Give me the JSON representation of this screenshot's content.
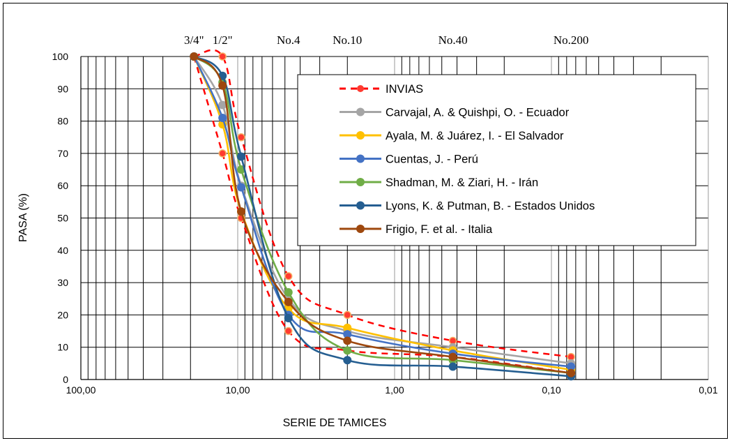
{
  "chart_data": {
    "type": "line",
    "xlabel": "SERIE DE TAMICES",
    "ylabel": "PASA (%)",
    "x_scale": "log",
    "x_reversed": true,
    "xlim": [
      100,
      0.01
    ],
    "ylim": [
      0,
      100
    ],
    "x_ticks": [
      {
        "value": 100,
        "label": "100,00"
      },
      {
        "value": 10,
        "label": "10,00"
      },
      {
        "value": 1,
        "label": "1,00"
      },
      {
        "value": 0.1,
        "label": "0,10"
      },
      {
        "value": 0.01,
        "label": "0,01"
      }
    ],
    "y_ticks": [
      0,
      10,
      20,
      30,
      40,
      50,
      60,
      70,
      80,
      90,
      100
    ],
    "grid": true,
    "sieves": [
      {
        "label": "3/4\"",
        "size": 19
      },
      {
        "label": "1/2\"",
        "size": 12.5
      },
      {
        "label": "No.4",
        "size": 4.75
      },
      {
        "label": "No.10",
        "size": 2.0
      },
      {
        "label": "No.40",
        "size": 0.425
      },
      {
        "label": "No.200",
        "size": 0.075
      }
    ],
    "legend_position": "right",
    "series": [
      {
        "name": "INVIAS",
        "color": "#FF0000",
        "dashed": true,
        "x": [
          19,
          12.5,
          9.5,
          4.75,
          2.0,
          0.425,
          0.075
        ],
        "y": [
          100,
          100,
          75,
          32,
          20,
          12,
          7
        ]
      },
      {
        "name": "INVIAS",
        "color": "#FF0000",
        "dashed": true,
        "legend": false,
        "x": [
          19,
          12.5,
          9.5,
          4.75,
          2.0,
          0.425,
          0.075
        ],
        "y": [
          100,
          70,
          50,
          15,
          9,
          7,
          2
        ]
      },
      {
        "name": "Carvajal, A. & Quishpi, O. - Ecuador",
        "color": "#A5A5A5",
        "x": [
          19,
          12.5,
          9.5,
          4.75,
          2.0,
          0.425,
          0.075
        ],
        "y": [
          100,
          85,
          60,
          25,
          15,
          10,
          5
        ]
      },
      {
        "name": "Ayala, M. & Juárez, I. - El Salvador",
        "color": "#FFC000",
        "x": [
          19,
          12.5,
          9.5,
          4.75,
          2.0,
          0.425,
          0.075
        ],
        "y": [
          100,
          79,
          52,
          22,
          16,
          9,
          3
        ]
      },
      {
        "name": "Cuentas, J. - Perú",
        "color": "#4472C4",
        "x": [
          19,
          12.5,
          9.5,
          4.75,
          2.0,
          0.425,
          0.075
        ],
        "y": [
          100,
          81,
          59.5,
          20,
          14,
          8,
          4
        ]
      },
      {
        "name": "Shadman, M. & Ziari, H. - Irán",
        "color": "#70AD47",
        "x": [
          19,
          12.5,
          9.5,
          4.75,
          2.0,
          0.425,
          0.075
        ],
        "y": [
          100,
          92,
          65,
          27,
          9,
          6,
          2
        ]
      },
      {
        "name": "Lyons, K. & Putman, B. - Estados Unidos",
        "color": "#255E91",
        "x": [
          19,
          12.5,
          9.5,
          4.75,
          2.0,
          0.425,
          0.075
        ],
        "y": [
          100,
          94,
          69,
          19,
          6,
          4,
          1
        ]
      },
      {
        "name": "Frigio, F. et al. - Italia",
        "color": "#9E480E",
        "x": [
          19,
          12.5,
          9.5,
          4.75,
          2.0,
          0.425,
          0.075
        ],
        "y": [
          100,
          91,
          52,
          24,
          12,
          7,
          2
        ]
      }
    ]
  }
}
